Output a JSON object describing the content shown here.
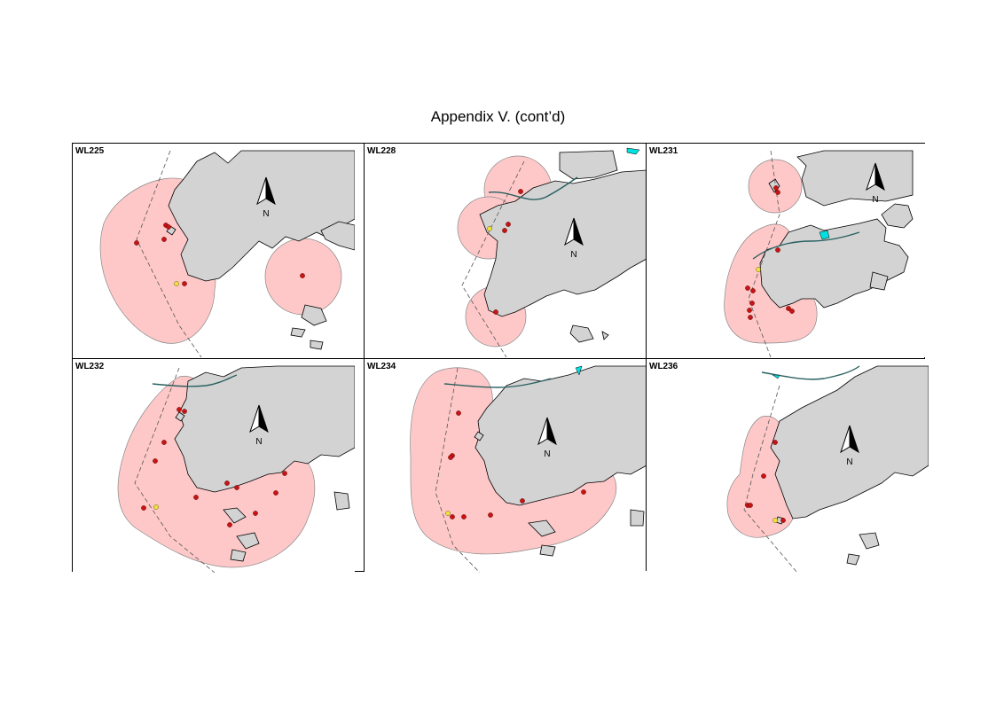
{
  "title": "Appendix V.  (cont’d)",
  "north_label": "N",
  "colors": {
    "land": "#d3d3d3",
    "buffer": "#ffc8c8",
    "buffer_edge": "#888888",
    "site_red": "#c81414",
    "site_yellow": "#f0e040",
    "road": "#2a6060",
    "water": "#00e0e0",
    "boundary": "#555555"
  },
  "panels": [
    {
      "label": "WL225"
    },
    {
      "label": "WL228"
    },
    {
      "label": "WL231"
    },
    {
      "label": "WL232"
    },
    {
      "label": "WL234"
    },
    {
      "label": "WL236"
    }
  ]
}
